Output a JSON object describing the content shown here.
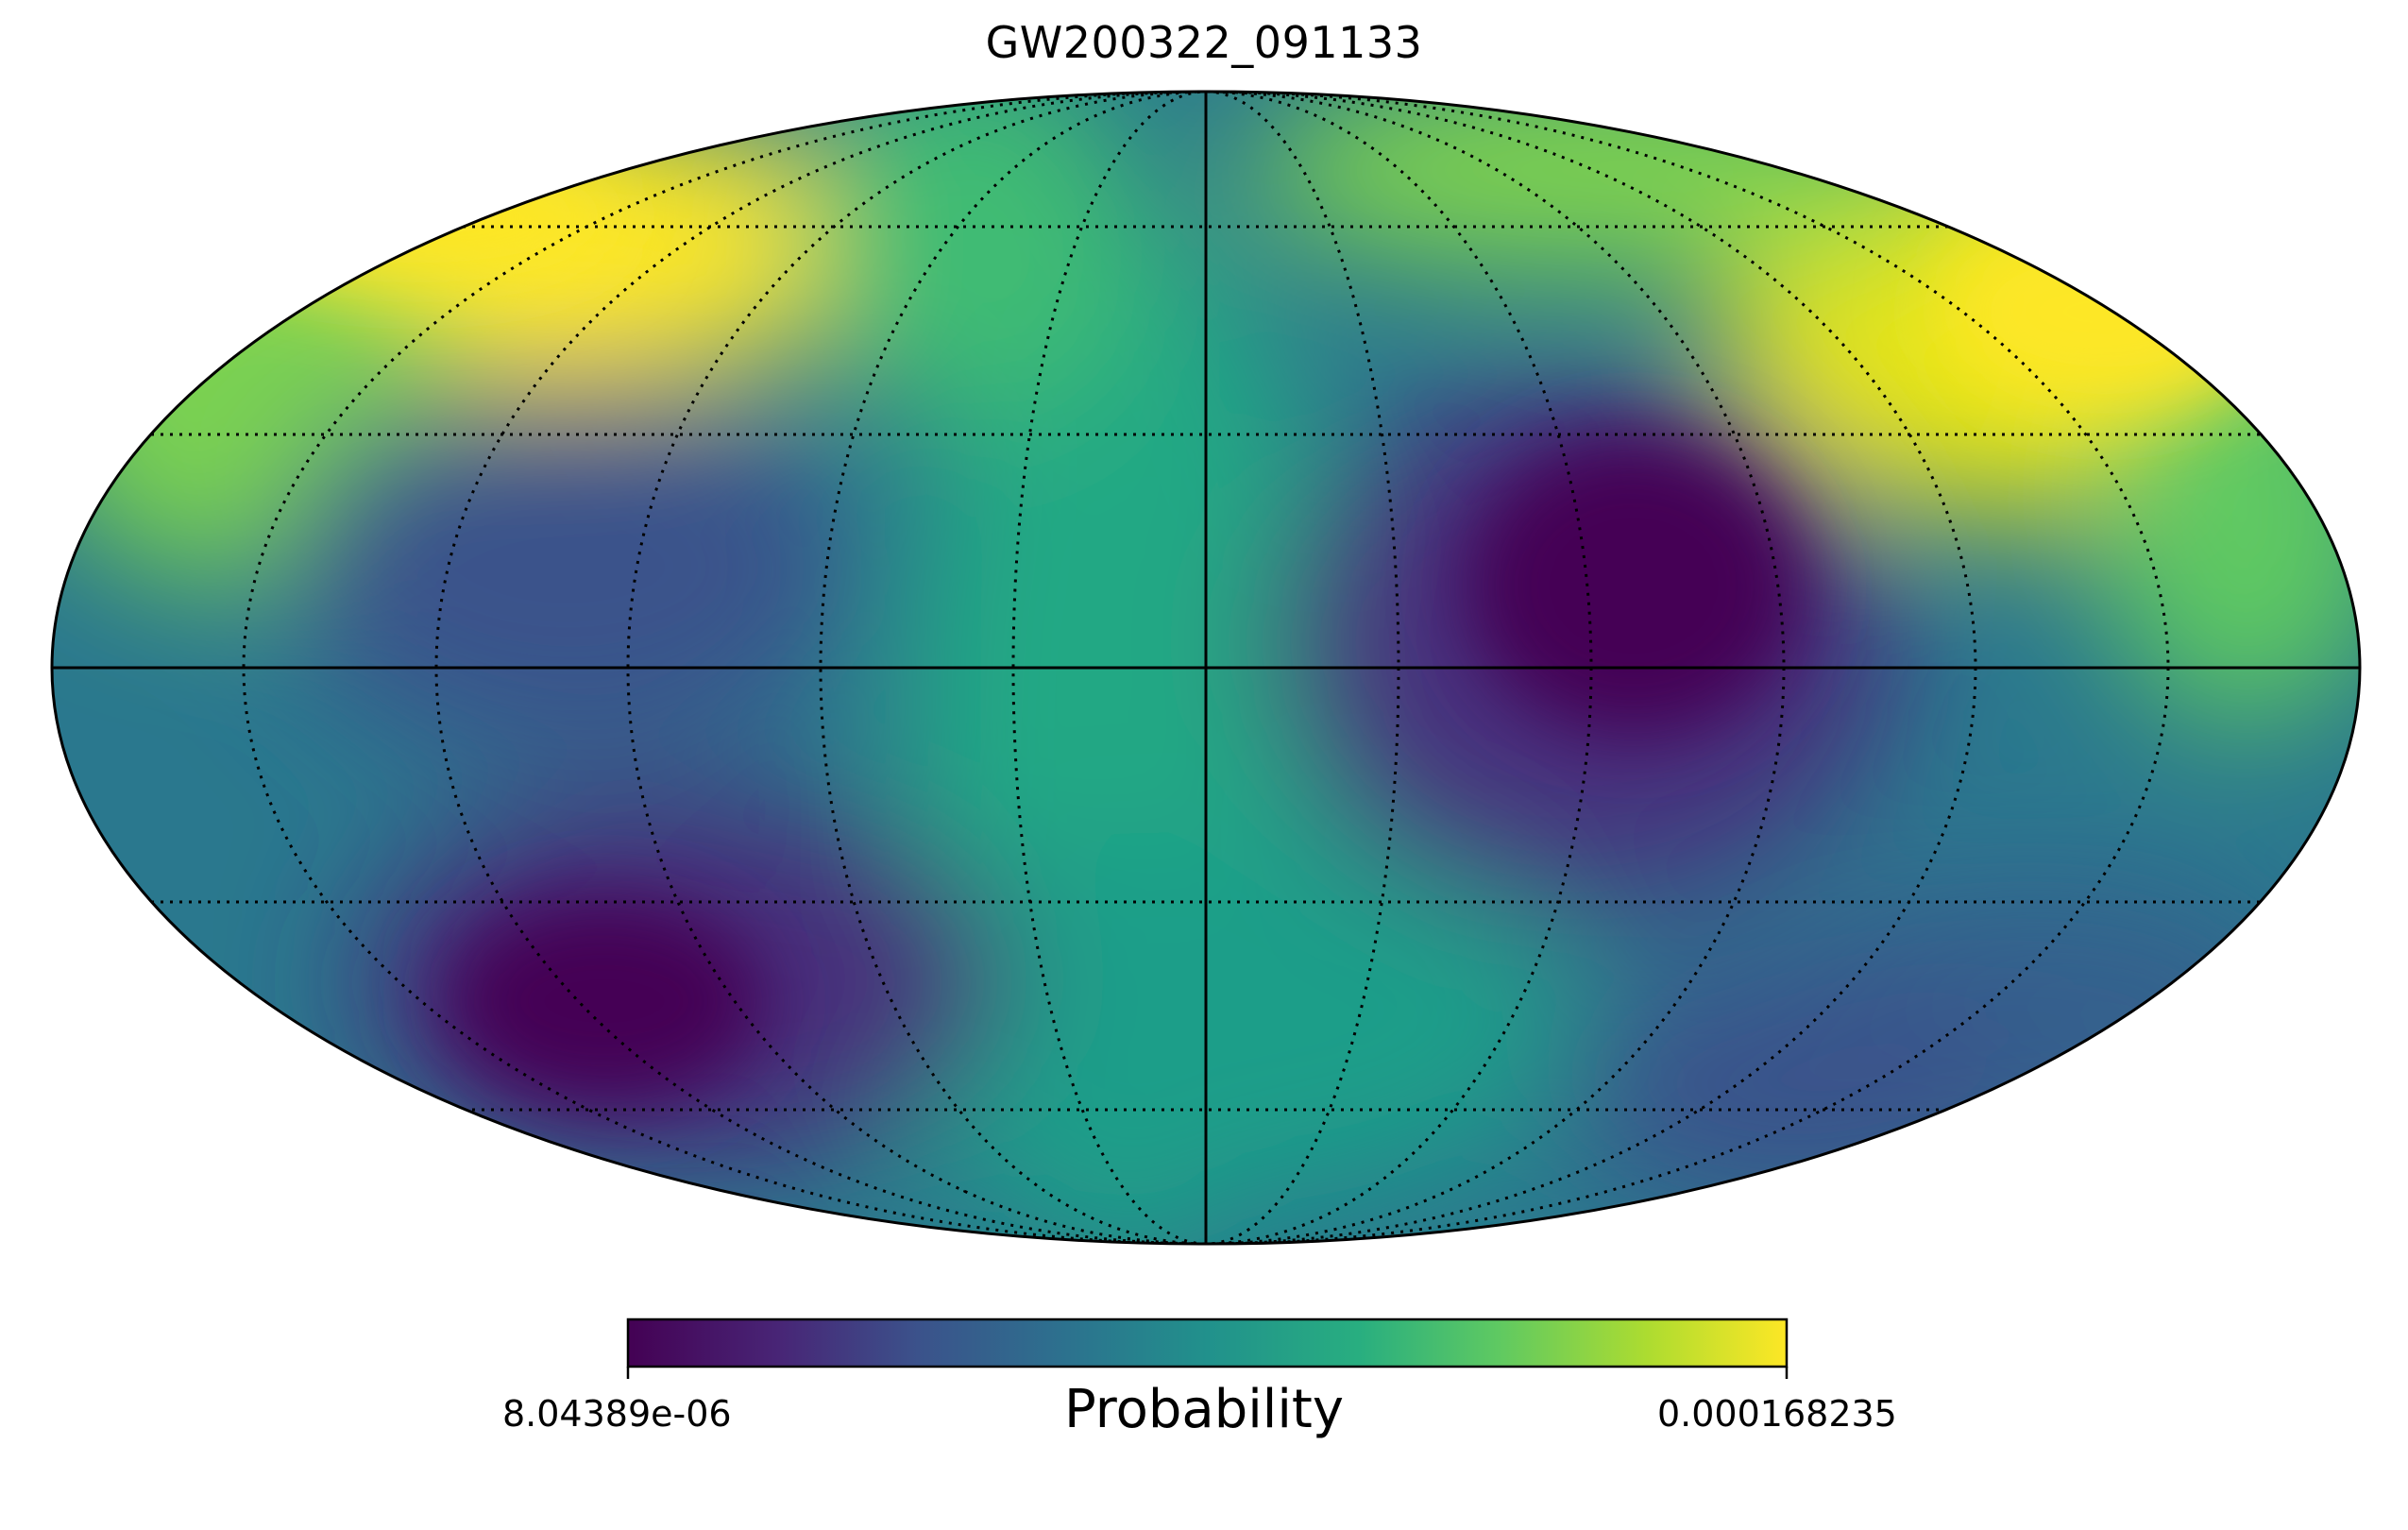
{
  "title": "GW200322_091133",
  "colorbar": {
    "label": "Probability",
    "min_label": "8.04389e-06",
    "max_label": "0.000168235",
    "colormap": "viridis"
  },
  "projection": "mollweide",
  "graticule": {
    "meridian_spacing_deg": 30,
    "parallel_spacing_deg": 30,
    "style": "dotted"
  },
  "colors": {
    "low": "#440154",
    "mid": "#21918c",
    "high": "#fde725"
  }
}
